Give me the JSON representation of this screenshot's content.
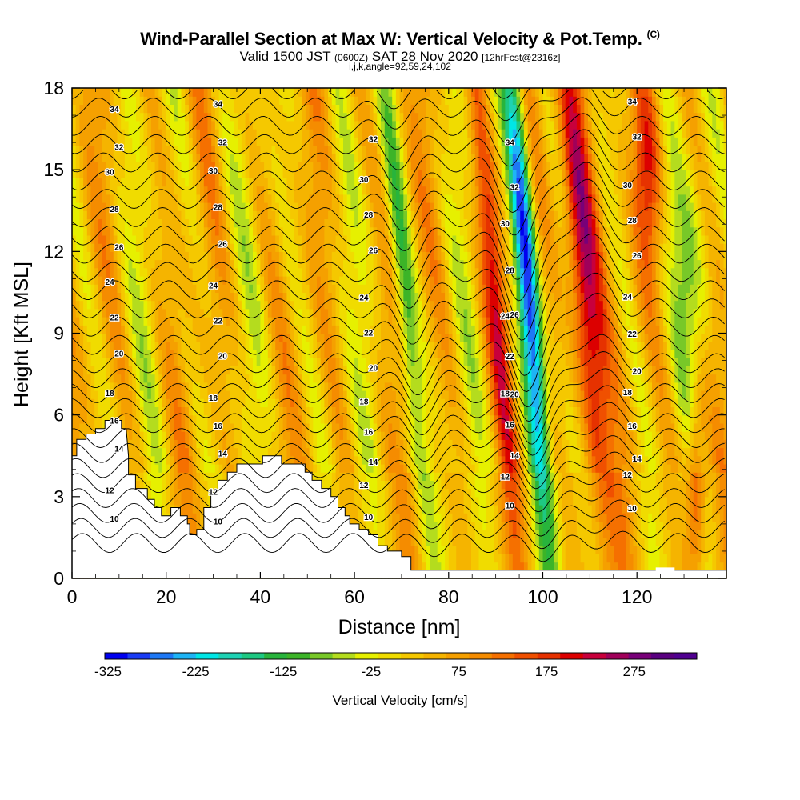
{
  "header": {
    "title": "Wind-Parallel Section at Max W: Vertical Velocity & Pot.Temp.",
    "title_tag": "(C)",
    "valid_prefix": "Valid 1500 JST",
    "valid_utc": "(0600Z)",
    "valid_date": "SAT 28 Nov 2020",
    "forecast_info": "[12hrFcst@2316z]",
    "indices": "i,j,k,angle=92,59,24,102"
  },
  "chart_data": {
    "type": "heatmap",
    "xlabel": "Distance [nm]",
    "ylabel": "Height [Kft MSL]",
    "xlim": [
      0,
      139
    ],
    "ylim": [
      0,
      18
    ],
    "x_ticks": [
      0,
      20,
      40,
      60,
      80,
      100,
      120
    ],
    "y_ticks": [
      0,
      3,
      6,
      9,
      12,
      15,
      18
    ],
    "colorbar": {
      "label": "Vertical Velocity [cm/s]",
      "range": [
        -325,
        325
      ],
      "step": 25,
      "tick_labels": [
        "-325",
        "-225",
        "-125",
        "-25",
        "75",
        "175",
        "275"
      ],
      "colors": [
        "#0000f0",
        "#1a3cf5",
        "#1e78f5",
        "#1eb4f5",
        "#00e6e6",
        "#1ed2b4",
        "#1ec882",
        "#28b43c",
        "#3cb428",
        "#78c828",
        "#b4dc1e",
        "#e6f000",
        "#f0dc00",
        "#f5c800",
        "#f5b400",
        "#f5a000",
        "#f58c00",
        "#f57000",
        "#f05000",
        "#e63200",
        "#dc0000",
        "#c8003c",
        "#a0005a",
        "#780078",
        "#5a0080",
        "#500090"
      ]
    },
    "contour_field": "Potential Temperature (C)",
    "contour_levels": [
      10,
      12,
      14,
      16,
      18,
      20,
      22,
      24,
      26,
      28,
      30,
      32,
      34
    ],
    "velocity_features": [
      {
        "name": "strong downdraft",
        "x": 96,
        "cm_s": -300
      },
      {
        "name": "strong updraft",
        "x": 110,
        "cm_s": 225
      },
      {
        "name": "updraft",
        "x": 90,
        "cm_s": 150
      },
      {
        "name": "updraft",
        "x": 132,
        "cm_s": 150
      }
    ]
  }
}
